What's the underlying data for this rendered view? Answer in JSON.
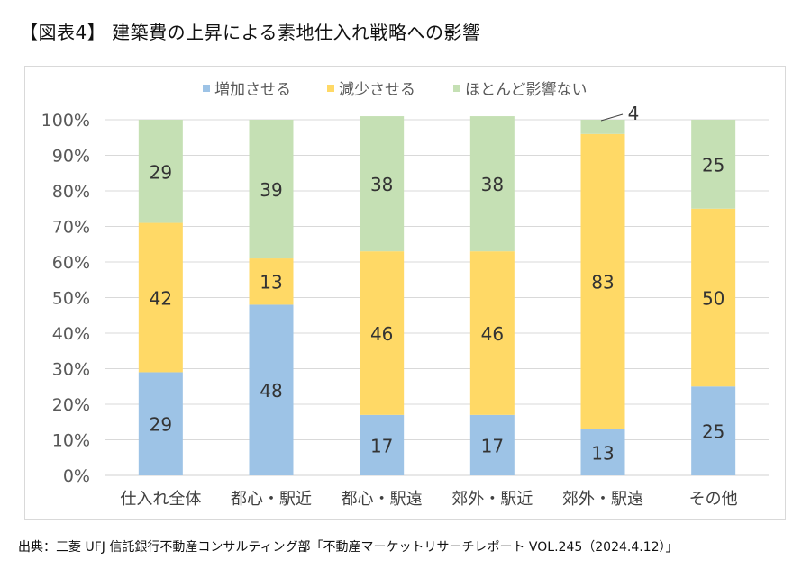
{
  "title": "【図表4】 建築費の上昇による素地仕入れ戦略への影響",
  "source": "出典：三菱 UFJ 信託銀行不動産コンサルティング部「不動産マーケットリサーチレポート VOL.245（2024.4.12）」",
  "chart_data": {
    "type": "bar",
    "stacked": true,
    "title": "【図表4】 建築費の上昇による素地仕入れ戦略への影響",
    "xlabel": "",
    "ylabel": "",
    "ylim": [
      0,
      100
    ],
    "yticks": [
      "0%",
      "10%",
      "20%",
      "30%",
      "40%",
      "50%",
      "60%",
      "70%",
      "80%",
      "90%",
      "100%"
    ],
    "grid": true,
    "legend_position": "top",
    "categories": [
      "仕入れ全体",
      "都心・駅近",
      "都心・駅遠",
      "郊外・駅近",
      "郊外・駅遠",
      "その他"
    ],
    "series": [
      {
        "name": "増加させる",
        "color": "#9dc3e6",
        "values": [
          29,
          48,
          17,
          17,
          13,
          25
        ]
      },
      {
        "name": "減少させる",
        "color": "#ffd966",
        "values": [
          42,
          13,
          46,
          46,
          83,
          50
        ]
      },
      {
        "name": "ほとんど影響ない",
        "color": "#c5e0b4",
        "values": [
          29,
          39,
          38,
          38,
          4,
          25
        ]
      }
    ]
  }
}
